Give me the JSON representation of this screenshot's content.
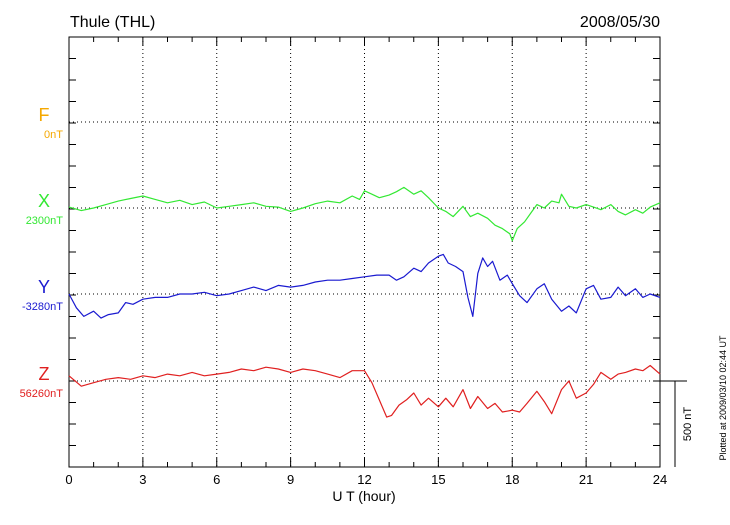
{
  "header": {
    "station": "Thule (THL)",
    "date": "2008/05/30"
  },
  "plotted_note": "Plotted at 2009/03/10 02:44 UT",
  "scale_bar_label": "500 nT",
  "chart_data": {
    "type": "line",
    "xlabel": "U T (hour)",
    "xlim": [
      0,
      24
    ],
    "x_ticks": [
      "0",
      "3",
      "6",
      "9",
      "12",
      "15",
      "18",
      "21",
      "24"
    ],
    "grid": true,
    "series": [
      {
        "name": "F",
        "baseline_label": "0nT",
        "color": "#f5a800",
        "x": [],
        "y": []
      },
      {
        "name": "X",
        "baseline_label": "2300nT",
        "color": "#33e833",
        "x": [
          0,
          0.5,
          1,
          1.5,
          2,
          2.5,
          3,
          3.5,
          4,
          4.5,
          5,
          5.5,
          6,
          6.5,
          7,
          7.5,
          8,
          8.5,
          9,
          9.5,
          10,
          10.5,
          11,
          11.5,
          11.8,
          12,
          12.3,
          12.6,
          13,
          13.3,
          13.6,
          14,
          14.3,
          14.6,
          15,
          15.3,
          15.6,
          16,
          16.3,
          16.6,
          17,
          17.3,
          17.6,
          17.9,
          18,
          18.2,
          18.5,
          18.8,
          19,
          19.3,
          19.6,
          19.9,
          20,
          20.3,
          20.6,
          21,
          21.3,
          21.6,
          22,
          22.3,
          22.6,
          23,
          23.3,
          23.6,
          24
        ],
        "y": [
          2305,
          2285,
          2300,
          2320,
          2340,
          2355,
          2370,
          2350,
          2330,
          2345,
          2320,
          2335,
          2300,
          2310,
          2320,
          2330,
          2310,
          2305,
          2280,
          2300,
          2325,
          2340,
          2330,
          2370,
          2350,
          2400,
          2380,
          2360,
          2375,
          2395,
          2420,
          2380,
          2400,
          2360,
          2300,
          2280,
          2250,
          2310,
          2250,
          2270,
          2240,
          2200,
          2180,
          2150,
          2110,
          2180,
          2220,
          2280,
          2320,
          2300,
          2340,
          2330,
          2380,
          2310,
          2300,
          2320,
          2305,
          2290,
          2320,
          2280,
          2260,
          2290,
          2270,
          2305,
          2330
        ]
      },
      {
        "name": "Y",
        "baseline_label": "-3280nT",
        "color": "#1a1ad0",
        "x": [
          0,
          0.3,
          0.6,
          1,
          1.3,
          1.6,
          2,
          2.3,
          2.6,
          3,
          3.5,
          4,
          4.5,
          5,
          5.5,
          6,
          6.5,
          7,
          7.5,
          8,
          8.5,
          9,
          9.5,
          10,
          10.5,
          11,
          11.5,
          12,
          12.5,
          13,
          13.3,
          13.6,
          14,
          14.3,
          14.6,
          15,
          15.2,
          15.4,
          15.7,
          16,
          16.2,
          16.4,
          16.6,
          16.8,
          17,
          17.2,
          17.5,
          17.8,
          18,
          18.3,
          18.6,
          19,
          19.3,
          19.6,
          20,
          20.3,
          20.6,
          21,
          21.3,
          21.6,
          22,
          22.3,
          22.6,
          23,
          23.3,
          23.6,
          24
        ],
        "y": [
          -3280,
          -3360,
          -3410,
          -3380,
          -3420,
          -3400,
          -3390,
          -3330,
          -3340,
          -3310,
          -3300,
          -3300,
          -3280,
          -3280,
          -3270,
          -3290,
          -3280,
          -3260,
          -3240,
          -3260,
          -3230,
          -3240,
          -3230,
          -3210,
          -3200,
          -3200,
          -3190,
          -3180,
          -3170,
          -3170,
          -3200,
          -3180,
          -3130,
          -3150,
          -3100,
          -3060,
          -3050,
          -3100,
          -3120,
          -3150,
          -3300,
          -3410,
          -3160,
          -3070,
          -3120,
          -3090,
          -3200,
          -3170,
          -3220,
          -3290,
          -3330,
          -3250,
          -3220,
          -3310,
          -3380,
          -3350,
          -3390,
          -3250,
          -3230,
          -3310,
          -3300,
          -3240,
          -3290,
          -3250,
          -3300,
          -3280,
          -3300
        ]
      },
      {
        "name": "Z",
        "baseline_label": "56260nT",
        "color": "#e02020",
        "x": [
          0,
          0.5,
          1,
          1.5,
          2,
          2.5,
          3,
          3.5,
          4,
          4.5,
          5,
          5.5,
          6,
          6.5,
          7,
          7.5,
          8,
          8.5,
          9,
          9.5,
          10,
          10.5,
          11,
          11.5,
          12,
          12.3,
          12.6,
          12.9,
          13.1,
          13.4,
          13.7,
          14,
          14.3,
          14.6,
          15,
          15.3,
          15.6,
          16,
          16.3,
          16.6,
          17,
          17.3,
          17.6,
          18,
          18.3,
          18.6,
          19,
          19.3,
          19.6,
          20,
          20.3,
          20.6,
          21,
          21.3,
          21.6,
          22,
          22.3,
          22.6,
          23,
          23.3,
          23.6,
          24
        ],
        "y": [
          56290,
          56230,
          56250,
          56270,
          56280,
          56270,
          56290,
          56280,
          56300,
          56290,
          56310,
          56290,
          56300,
          56310,
          56330,
          56320,
          56340,
          56330,
          56310,
          56330,
          56320,
          56300,
          56280,
          56320,
          56320,
          56250,
          56150,
          56050,
          56060,
          56120,
          56150,
          56190,
          56120,
          56160,
          56110,
          56160,
          56110,
          56210,
          56100,
          56170,
          56100,
          56130,
          56080,
          56090,
          56080,
          56130,
          56200,
          56140,
          56070,
          56210,
          56260,
          56160,
          56190,
          56240,
          56310,
          56270,
          56300,
          56310,
          56330,
          56320,
          56350,
          56300
        ]
      }
    ]
  }
}
